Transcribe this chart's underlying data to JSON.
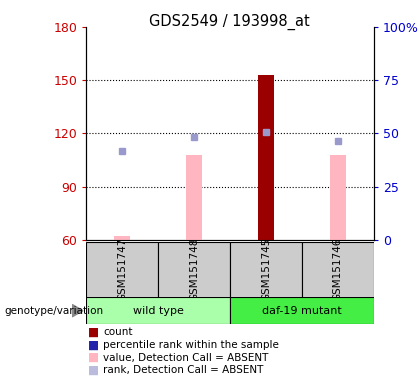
{
  "title": "GDS2549 / 193998_at",
  "samples": [
    "GSM151747",
    "GSM151748",
    "GSM151745",
    "GSM151746"
  ],
  "ylim_left": [
    60,
    180
  ],
  "ylim_right": [
    0,
    100
  ],
  "yticks_left": [
    60,
    90,
    120,
    150,
    180
  ],
  "yticks_right": [
    0,
    25,
    50,
    75,
    100
  ],
  "ytick_labels_right": [
    "0",
    "25",
    "50",
    "75",
    "100%"
  ],
  "bar_values": [
    62,
    108,
    153,
    108
  ],
  "bar_colors": [
    "#FFB6C1",
    "#FFB6C1",
    "#9B0000",
    "#FFB6C1"
  ],
  "rank_squares": [
    110,
    118,
    121,
    116
  ],
  "rank_sq_color": "#9999CC",
  "ylabel_left_color": "#CC0000",
  "ylabel_right_color": "#0000CC",
  "label_area_color": "#CCCCCC",
  "group_label": "genotype/variation",
  "group_spans": [
    {
      "label": "wild type",
      "start": 0,
      "end": 1,
      "color": "#AAFFAA"
    },
    {
      "label": "daf-19 mutant",
      "start": 2,
      "end": 3,
      "color": "#44EE44"
    }
  ],
  "legend_colors": [
    "#9B0000",
    "#2222AA",
    "#FFB6C1",
    "#BBBBDD"
  ],
  "legend_labels": [
    "count",
    "percentile rank within the sample",
    "value, Detection Call = ABSENT",
    "rank, Detection Call = ABSENT"
  ]
}
